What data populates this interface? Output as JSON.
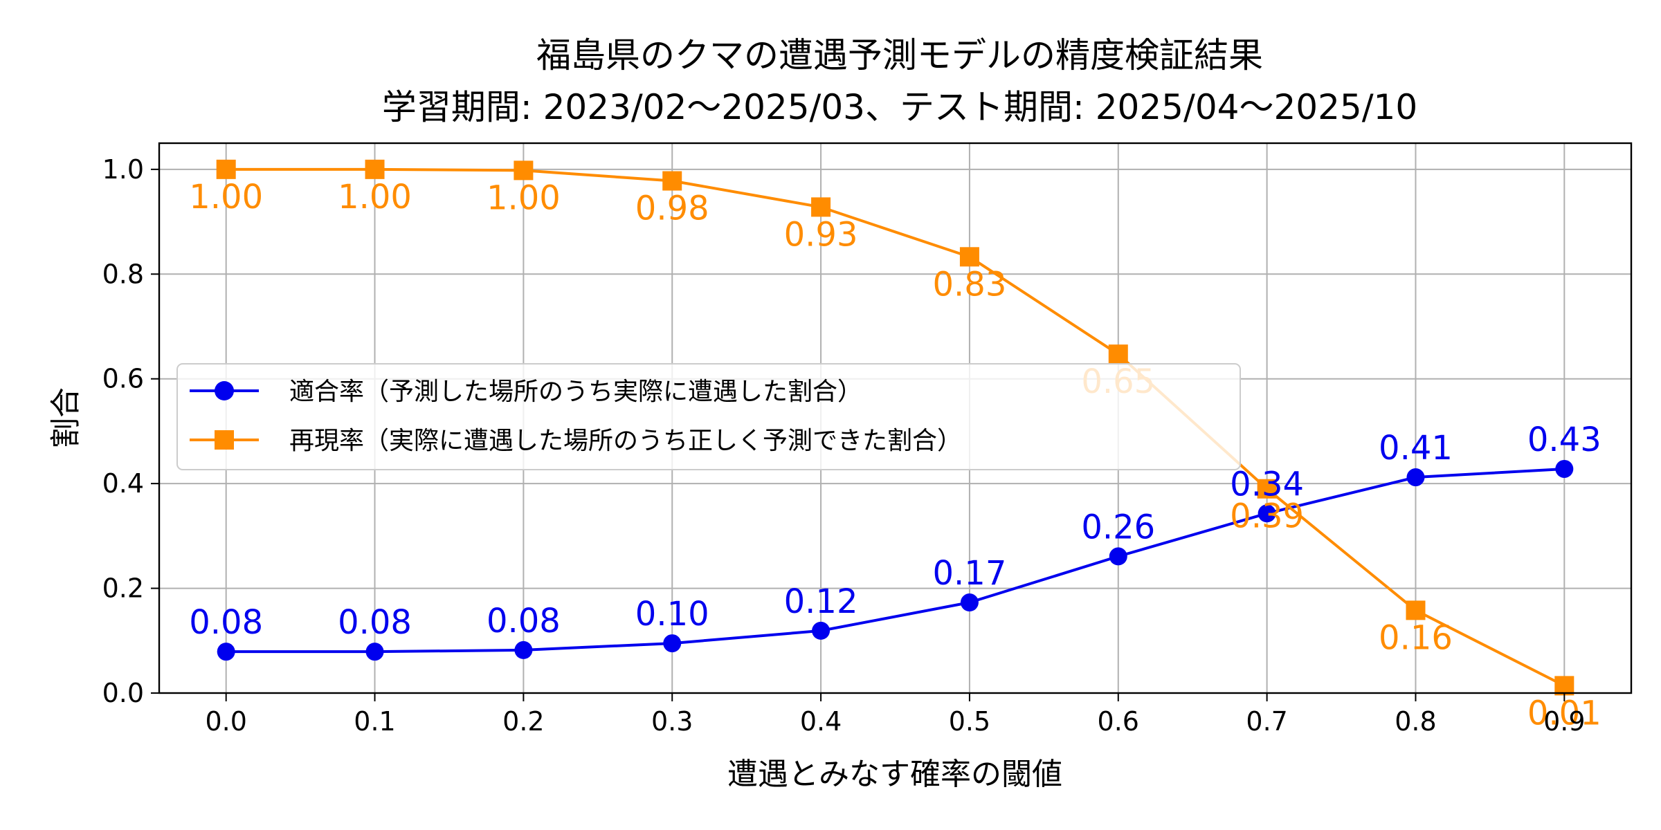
{
  "chart_data": {
    "type": "line",
    "title": "福島県のクマの遭遇予測モデルの精度検証結果",
    "subtitle": "学習期間: 2023/02〜2025/03、テスト期間: 2025/04〜2025/10",
    "xlabel": "遭遇とみなす確率の閾値",
    "ylabel": "割合",
    "x": [
      0.0,
      0.1,
      0.2,
      0.3,
      0.4,
      0.5,
      0.6,
      0.7,
      0.8,
      0.9
    ],
    "x_tick_labels": [
      "0.0",
      "0.1",
      "0.2",
      "0.3",
      "0.4",
      "0.5",
      "0.6",
      "0.7",
      "0.8",
      "0.9"
    ],
    "y_ticks": [
      0.0,
      0.2,
      0.4,
      0.6,
      0.8,
      1.0
    ],
    "y_tick_labels": [
      "0.0",
      "0.2",
      "0.4",
      "0.6",
      "0.8",
      "1.0"
    ],
    "xlim": [
      -0.045,
      0.945
    ],
    "ylim": [
      0.0,
      1.05
    ],
    "grid": true,
    "legend_position": "center-left",
    "series": [
      {
        "name": "適合率（予測した場所のうち実際に遭遇した割合）",
        "color": "#0000ee",
        "marker": "circle",
        "label_position": "above",
        "values": [
          0.079,
          0.079,
          0.082,
          0.095,
          0.119,
          0.173,
          0.261,
          0.343,
          0.412,
          0.428
        ],
        "labels": [
          "0.08",
          "0.08",
          "0.08",
          "0.10",
          "0.12",
          "0.17",
          "0.26",
          "0.34",
          "0.41",
          "0.43"
        ]
      },
      {
        "name": "再現率（実際に遭遇した場所のうち正しく予測できた割合）",
        "color": "#ff8c00",
        "marker": "square",
        "label_position": "below",
        "values": [
          1.0,
          1.0,
          0.998,
          0.978,
          0.928,
          0.833,
          0.647,
          0.39,
          0.158,
          0.014
        ],
        "labels": [
          "1.00",
          "1.00",
          "1.00",
          "0.98",
          "0.93",
          "0.83",
          "0.65",
          "0.39",
          "0.16",
          "0.01"
        ]
      }
    ]
  }
}
